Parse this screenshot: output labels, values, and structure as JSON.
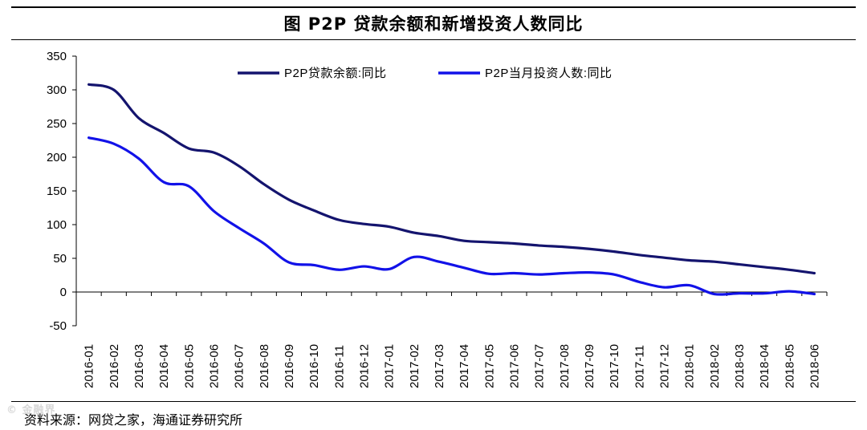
{
  "title": "图  P2P 贷款余额和新增投资人数同比",
  "source": "资料来源：网贷之家，海通证券研究所",
  "watermark": "© 金融界",
  "chart_data": {
    "type": "line",
    "title": "图  P2P 贷款余额和新增投资人数同比",
    "xlabel": "",
    "ylabel": "",
    "ylim": [
      -50,
      350
    ],
    "yticks": [
      -50,
      0,
      50,
      100,
      150,
      200,
      250,
      300,
      350
    ],
    "grid": false,
    "legend_position": "top",
    "categories": [
      "2016-01",
      "2016-02",
      "2016-03",
      "2016-04",
      "2016-05",
      "2016-06",
      "2016-07",
      "2016-08",
      "2016-09",
      "2016-10",
      "2016-11",
      "2016-12",
      "2017-01",
      "2017-02",
      "2017-03",
      "2017-04",
      "2017-05",
      "2017-06",
      "2017-07",
      "2017-08",
      "2017-09",
      "2017-10",
      "2017-11",
      "2017-12",
      "2018-01",
      "2018-02",
      "2018-03",
      "2018-04",
      "2018-05",
      "2018-06"
    ],
    "series": [
      {
        "name": "P2P贷款余额:同比",
        "color": "#14146e",
        "values": [
          308,
          300,
          258,
          236,
          213,
          207,
          187,
          160,
          137,
          121,
          107,
          101,
          97,
          88,
          83,
          76,
          74,
          72,
          69,
          67,
          64,
          60,
          55,
          51,
          47,
          45,
          41,
          37,
          33,
          28
        ]
      },
      {
        "name": "P2P当月投资人数:同比",
        "color": "#1212e8",
        "values": [
          229,
          220,
          198,
          163,
          157,
          120,
          95,
          72,
          44,
          40,
          33,
          38,
          34,
          52,
          45,
          36,
          27,
          28,
          26,
          28,
          29,
          26,
          15,
          7,
          10,
          -3,
          -2,
          -2,
          1,
          -3
        ]
      }
    ]
  }
}
